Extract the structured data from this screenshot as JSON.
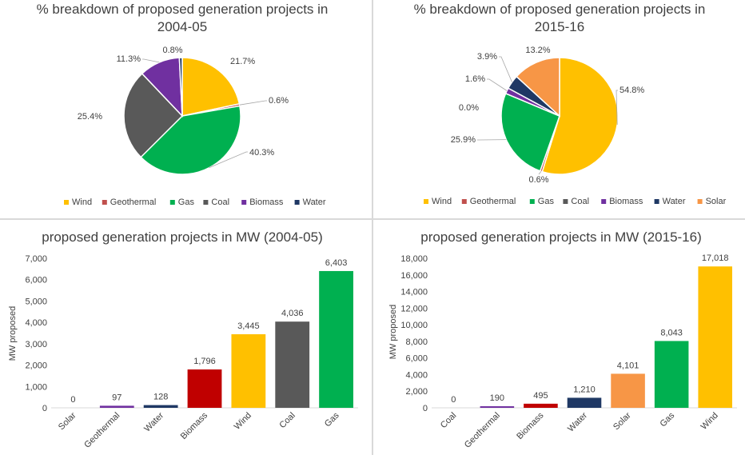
{
  "colors": {
    "Wind": "#FFC000",
    "Geothermal": "#C0504D",
    "Gas": "#00B050",
    "Coal": "#595959",
    "Biomass": "#7030A0",
    "Water": "#1F3864",
    "Solar": "#F79646",
    "BiomassBar": "#C00000",
    "GeothermalBar": "#7030A0"
  },
  "chart_data": [
    {
      "type": "pie",
      "title": "%  breakdown of proposed generation projects in 2004-05",
      "title_lines": [
        "%  breakdown of proposed generation projects in",
        "2004-05"
      ],
      "categories": [
        "Wind",
        "Geothermal",
        "Gas",
        "Coal",
        "Biomass",
        "Water"
      ],
      "values": [
        21.7,
        0.6,
        40.3,
        25.4,
        11.3,
        0.8
      ],
      "value_labels": [
        "21.7%",
        "0.6%",
        "40.3%",
        "25.4%",
        "11.3%",
        "0.8%"
      ],
      "legend": [
        "Wind",
        "Geothermal",
        "Gas",
        "Coal",
        "Biomass",
        "Water"
      ],
      "legend_position": "bottom"
    },
    {
      "type": "pie",
      "title": "%  breakdown of proposed generation projects in 2015-16",
      "title_lines": [
        "%  breakdown of proposed generation projects in",
        "2015-16"
      ],
      "categories": [
        "Wind",
        "Geothermal",
        "Gas",
        "Coal",
        "Biomass",
        "Water",
        "Solar"
      ],
      "values": [
        54.8,
        0.6,
        25.9,
        0.0,
        1.6,
        3.9,
        13.2
      ],
      "value_labels": [
        "54.8%",
        "0.6%",
        "25.9%",
        "0.0%",
        "1.6%",
        "3.9%",
        "13.2%"
      ],
      "legend": [
        "Wind",
        "Geothermal",
        "Gas",
        "Coal",
        "Biomass",
        "Water",
        "Solar"
      ],
      "legend_position": "bottom"
    },
    {
      "type": "bar",
      "title": "proposed generation projects in MW (2004-05)",
      "ylabel": "MW proposed",
      "xlabel": "",
      "categories": [
        "Solar",
        "Geothermal",
        "Water",
        "Biomass",
        "Wind",
        "Coal",
        "Gas"
      ],
      "values": [
        0,
        97,
        128,
        1796,
        3445,
        4036,
        6403
      ],
      "value_labels": [
        "0",
        "97",
        "128",
        "1,796",
        "3,445",
        "4,036",
        "6,403"
      ],
      "bar_colors": [
        "Solar",
        "GeothermalBar",
        "Water",
        "BiomassBar",
        "Wind",
        "Coal",
        "Gas"
      ],
      "ylim": [
        0,
        7000
      ],
      "yticks": [
        0,
        1000,
        2000,
        3000,
        4000,
        5000,
        6000,
        7000
      ],
      "ytick_labels": [
        "0",
        "1,000",
        "2,000",
        "3,000",
        "4,000",
        "5,000",
        "6,000",
        "7,000"
      ],
      "grid": false
    },
    {
      "type": "bar",
      "title": "proposed generation projects in MW (2015-16)",
      "ylabel": "MW proposed",
      "xlabel": "",
      "categories": [
        "Coal",
        "Geothermal",
        "Biomass",
        "Water",
        "Solar",
        "Gas",
        "Wind"
      ],
      "values": [
        0,
        190,
        495,
        1210,
        4101,
        8043,
        17018
      ],
      "value_labels": [
        "0",
        "190",
        "495",
        "1,210",
        "4,101",
        "8,043",
        "17,018"
      ],
      "bar_colors": [
        "Coal",
        "GeothermalBar",
        "BiomassBar",
        "Water",
        "Solar",
        "Gas",
        "Wind"
      ],
      "ylim": [
        0,
        18000
      ],
      "yticks": [
        0,
        2000,
        4000,
        6000,
        8000,
        10000,
        12000,
        14000,
        16000,
        18000
      ],
      "ytick_labels": [
        "0",
        "2,000",
        "4,000",
        "6,000",
        "8,000",
        "10,000",
        "12,000",
        "14,000",
        "16,000",
        "18,000"
      ],
      "grid": false
    }
  ]
}
